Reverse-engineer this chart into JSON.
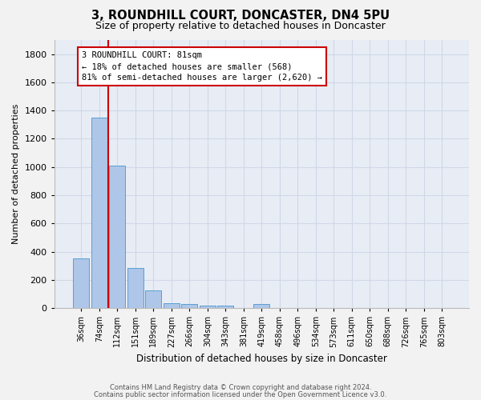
{
  "title": "3, ROUNDHILL COURT, DONCASTER, DN4 5PU",
  "subtitle": "Size of property relative to detached houses in Doncaster",
  "xlabel": "Distribution of detached houses by size in Doncaster",
  "ylabel": "Number of detached properties",
  "categories": [
    "36sqm",
    "74sqm",
    "112sqm",
    "151sqm",
    "189sqm",
    "227sqm",
    "266sqm",
    "304sqm",
    "343sqm",
    "381sqm",
    "419sqm",
    "458sqm",
    "496sqm",
    "534sqm",
    "573sqm",
    "611sqm",
    "650sqm",
    "688sqm",
    "726sqm",
    "765sqm",
    "803sqm"
  ],
  "values": [
    350,
    1350,
    1010,
    285,
    125,
    35,
    30,
    20,
    15,
    0,
    30,
    0,
    0,
    0,
    0,
    0,
    0,
    0,
    0,
    0,
    0
  ],
  "bar_color": "#aec6e8",
  "bar_edge_color": "#5a9fd4",
  "vline_color": "#cc0000",
  "annotation_line1": "3 ROUNDHILL COURT: 81sqm",
  "annotation_line2": "← 18% of detached houses are smaller (568)",
  "annotation_line3": "81% of semi-detached houses are larger (2,620) →",
  "annotation_box_color": "#ffffff",
  "annotation_box_edge": "#cc0000",
  "ylim": [
    0,
    1900
  ],
  "yticks": [
    0,
    200,
    400,
    600,
    800,
    1000,
    1200,
    1400,
    1600,
    1800
  ],
  "grid_color": "#d0d8e8",
  "bg_color": "#e8edf5",
  "fig_bg_color": "#f2f2f2",
  "footer1": "Contains HM Land Registry data © Crown copyright and database right 2024.",
  "footer2": "Contains public sector information licensed under the Open Government Licence v3.0."
}
